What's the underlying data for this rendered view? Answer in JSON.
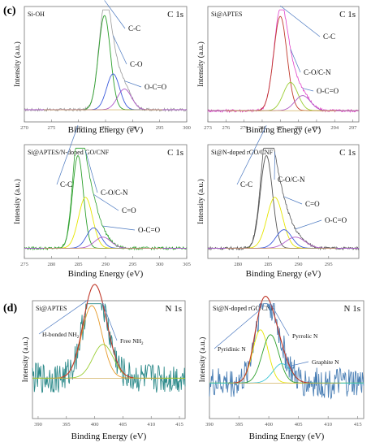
{
  "section_labels": {
    "c": "(c)",
    "d": "(d)"
  },
  "axis_texts": {
    "binding_energy": "Binding Energy (eV)",
    "intensity": "Intensity (a.u.)"
  },
  "colors": {
    "grey": "#9a9a9a",
    "magenta": "#e040c8",
    "green": "#2ca02c",
    "black": "#555555",
    "teal": "#2e8b8b",
    "steelblue": "#4a7fb5",
    "red": "#c0392b",
    "blue": "#3b5bdb",
    "yellow": "#e6e600",
    "purple": "#b05cc8",
    "orange": "#e69a28",
    "cyan": "#3fc6d6",
    "lime": "#9acd32"
  },
  "chart_data": [
    {
      "type": "line",
      "sample": "Si-OH",
      "core_level": "C 1s",
      "xlabel": "Binding Energy (eV)",
      "ylabel": "Intensity (a.u.)",
      "xlim": [
        270,
        300
      ],
      "xticks": [
        270,
        275,
        280,
        285,
        290,
        295,
        300
      ],
      "data_color": "grey",
      "peaks": [
        {
          "name": "C-C",
          "center": 284.8,
          "height": 1.0,
          "width": 1.1,
          "color": "green"
        },
        {
          "name": "C-O",
          "center": 286.4,
          "height": 0.38,
          "width": 1.2,
          "color": "blue"
        },
        {
          "name": "O-C=O",
          "center": 288.5,
          "height": 0.22,
          "width": 1.3,
          "color": "purple"
        }
      ],
      "baseline": 0.06,
      "annotations": [
        {
          "text": "C-C",
          "target": 284.8
        },
        {
          "text": "C-O",
          "target": 286.4
        },
        {
          "text": "O-C=O",
          "target": 288.5
        }
      ]
    },
    {
      "type": "line",
      "sample": "Si@APTES",
      "core_level": "C 1s",
      "xlabel": "Binding Energy (eV)",
      "ylabel": "Intensity (a.u.)",
      "xlim": [
        273,
        298
      ],
      "xticks": [
        273,
        276,
        279,
        282,
        285,
        288,
        291,
        294,
        297
      ],
      "data_color": "magenta",
      "peaks": [
        {
          "name": "C-C",
          "center": 285.0,
          "height": 1.0,
          "width": 1.1,
          "color": "red"
        },
        {
          "name": "C-O/C-N",
          "center": 286.7,
          "height": 0.3,
          "width": 1.2,
          "color": "lime"
        },
        {
          "name": "O-C=O",
          "center": 288.7,
          "height": 0.16,
          "width": 1.3,
          "color": "purple"
        }
      ],
      "baseline": 0.05,
      "annotations": [
        {
          "text": "C-C",
          "target": 285.0
        },
        {
          "text": "C-O/C-N",
          "target": 286.7
        },
        {
          "text": "O-C=O",
          "target": 288.7
        }
      ]
    },
    {
      "type": "line",
      "sample": "Si@APTES/N-doped GO/CNF",
      "core_level": "C 1s",
      "xlabel": "Binding Energy (eV)",
      "ylabel": "Intensity (a.u.)",
      "xlim": [
        275,
        305
      ],
      "xticks": [
        275,
        280,
        285,
        290,
        295,
        300,
        305
      ],
      "data_color": "green",
      "peaks": [
        {
          "name": "C-C",
          "center": 284.9,
          "height": 1.0,
          "width": 1.0,
          "color": "green"
        },
        {
          "name": "C-O/C-N",
          "center": 286.3,
          "height": 0.55,
          "width": 1.3,
          "color": "yellow"
        },
        {
          "name": "C=O",
          "center": 287.8,
          "height": 0.22,
          "width": 1.3,
          "color": "blue"
        },
        {
          "name": "O-C=O",
          "center": 289.5,
          "height": 0.12,
          "width": 1.5,
          "color": "purple"
        }
      ],
      "baseline": 0.04,
      "annotations": [
        {
          "text": "C-C",
          "target": 284.9
        },
        {
          "text": "C-O/C-N",
          "target": 286.3
        },
        {
          "text": "C=O",
          "target": 287.8
        },
        {
          "text": "O-C=O",
          "target": 289.5
        }
      ]
    },
    {
      "type": "line",
      "sample": "Si@N-doped rGO/CNF",
      "core_level": "C 1s",
      "xlabel": "Binding Energy (eV)",
      "ylabel": "Intensity (a.u.)",
      "xlim": [
        275,
        300
      ],
      "xticks": [
        280,
        285,
        290,
        295
      ],
      "data_color": "black",
      "peaks": [
        {
          "name": "C-C",
          "center": 284.7,
          "height": 1.0,
          "width": 1.0,
          "color": "black"
        },
        {
          "name": "C-O/C-N",
          "center": 286.1,
          "height": 0.55,
          "width": 1.3,
          "color": "yellow"
        },
        {
          "name": "C=O",
          "center": 287.6,
          "height": 0.2,
          "width": 1.3,
          "color": "blue"
        },
        {
          "name": "O-C=O",
          "center": 289.5,
          "height": 0.12,
          "width": 1.6,
          "color": "purple"
        }
      ],
      "baseline": 0.04,
      "annotations": [
        {
          "text": "C-C",
          "target": 284.7
        },
        {
          "text": "C-O/C-N",
          "target": 286.1
        },
        {
          "text": "C=O",
          "target": 287.6
        },
        {
          "text": "O-C=O",
          "target": 289.5
        }
      ]
    },
    {
      "type": "line",
      "sample": "Si@APTES",
      "core_level": "N 1s",
      "xlabel": "Binding Energy (eV)",
      "ylabel": "Intensity (a.u.)",
      "xlim": [
        389,
        416
      ],
      "xticks": [
        390,
        395,
        400,
        405,
        410,
        415
      ],
      "data_color": "teal",
      "fit_color": "red",
      "peaks": [
        {
          "name": "H-bonded NH2",
          "center": 399.5,
          "height": 0.75,
          "width": 1.8,
          "color": "orange"
        },
        {
          "name": "Free NH2",
          "center": 401.5,
          "height": 0.35,
          "width": 1.8,
          "color": "lime"
        }
      ],
      "baseline": 0.35,
      "annotations": [
        {
          "text": "H-bonded NH",
          "sub": "2",
          "target": 398.8
        },
        {
          "text": "Free NH",
          "sub": "2",
          "target": 401.4
        }
      ]
    },
    {
      "type": "line",
      "sample": "Si@N-doped rGO/CNF",
      "core_level": "N 1s",
      "xlabel": "Binding Energy (eV)",
      "ylabel": "Intensity (a.u.)",
      "xlim": [
        390,
        416
      ],
      "xticks": [
        390,
        395,
        400,
        405,
        410,
        415
      ],
      "data_color": "steelblue",
      "fit_color": "red",
      "peaks": [
        {
          "name": "Pyridinic N",
          "center": 398.6,
          "height": 0.55,
          "width": 1.3,
          "color": "yellow"
        },
        {
          "name": "Pyrrolic N",
          "center": 400.3,
          "height": 0.5,
          "width": 1.4,
          "color": "green"
        },
        {
          "name": "Graphite N",
          "center": 402.2,
          "height": 0.2,
          "width": 1.5,
          "color": "cyan"
        }
      ],
      "baseline": 0.3,
      "annotations": [
        {
          "text": "Pyridinic N",
          "target": 398.4
        },
        {
          "text": "Pyrrolic N",
          "target": 400.3
        },
        {
          "text": "Graphite N",
          "target": 403.5
        }
      ]
    }
  ]
}
